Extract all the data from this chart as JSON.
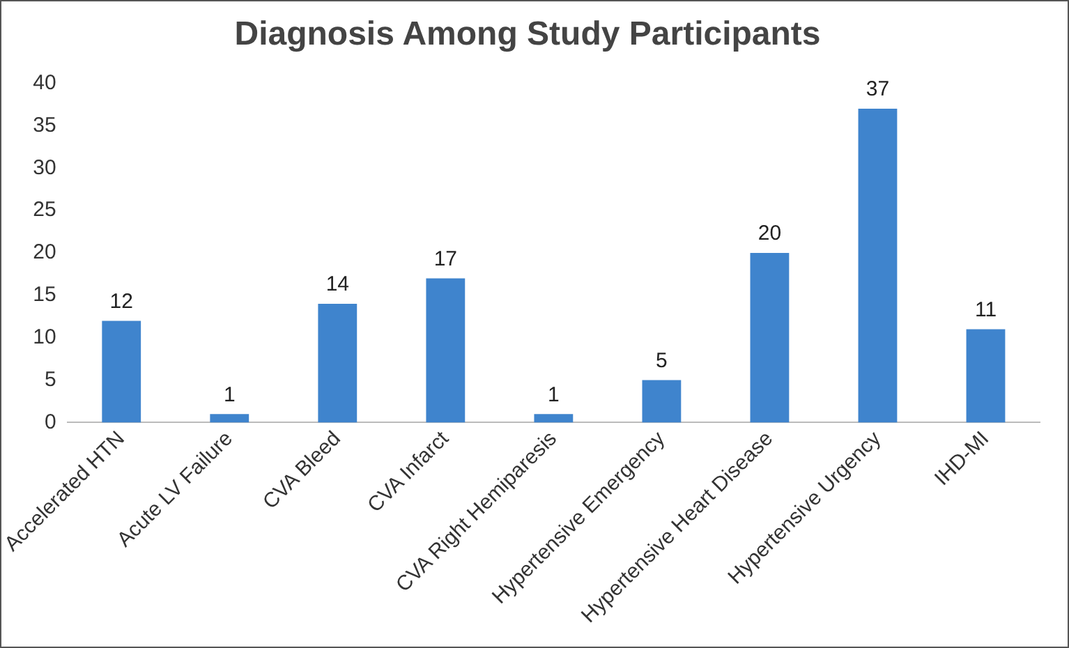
{
  "chart_data": {
    "type": "bar",
    "title": "Diagnosis Among Study Participants",
    "categories": [
      "Accelerated HTN",
      "Acute LV Failure",
      "CVA Bleed",
      "CVA Infarct",
      "CVA Right Hemiparesis",
      "Hypertensive Emergency",
      "Hypertensive Heart Disease",
      "Hypertensive Urgency",
      "IHD-MI"
    ],
    "values": [
      12,
      1,
      14,
      17,
      1,
      5,
      20,
      37,
      11
    ],
    "color": "#3f84cd",
    "ylim": [
      0,
      40
    ],
    "yticks": [
      0,
      5,
      10,
      15,
      20,
      25,
      30,
      35,
      40
    ],
    "grid": false,
    "legend": false,
    "data_labels": true
  }
}
